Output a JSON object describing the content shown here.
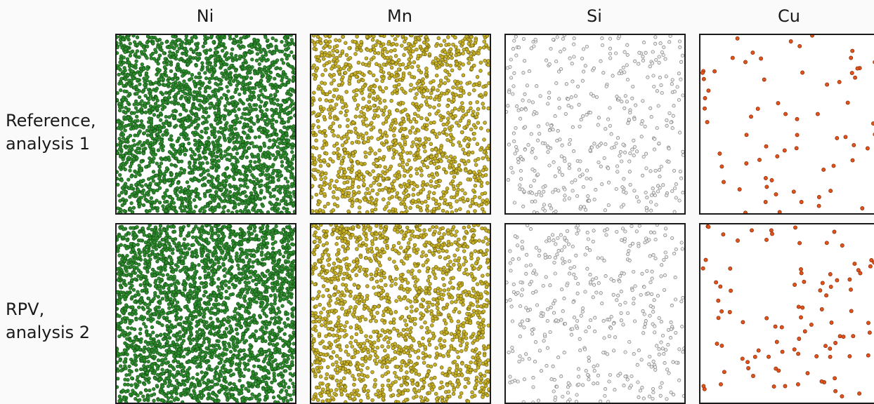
{
  "columns": [
    {
      "label": "Ni",
      "element": "Ni"
    },
    {
      "label": "Mn",
      "element": "Mn"
    },
    {
      "label": "Si",
      "element": "Si"
    },
    {
      "label": "Cu",
      "element": "Cu"
    }
  ],
  "rows": [
    {
      "line1": "Reference,",
      "line2": "analysis 1"
    },
    {
      "line1": "RPV,",
      "line2": "analysis 2"
    }
  ],
  "atom_styles": {
    "Ni": {
      "fill": "#2e8b2e",
      "stroke": "#145214"
    },
    "Mn": {
      "fill": "#c8b22a",
      "stroke": "#6b5e0d"
    },
    "Si": {
      "fill": "#ececec",
      "stroke": "#7a7a7a"
    },
    "Cu": {
      "fill": "#e0531b",
      "stroke": "#8a2a08"
    }
  },
  "panel_border_color": "#1a1a1a",
  "background_color": "#fafafa"
}
